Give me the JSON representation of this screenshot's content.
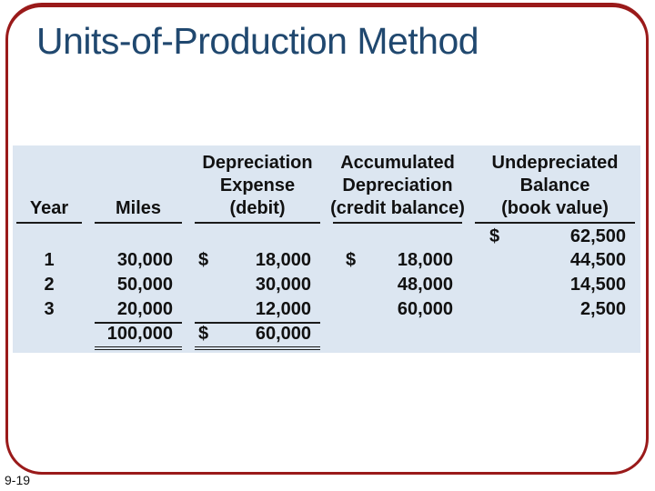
{
  "slide": {
    "title": "Units-of-Production Method",
    "page_number": "9-19"
  },
  "colors": {
    "border_red": "#9A1A1A",
    "title_blue": "#20486F",
    "table_background": "#DCE6F1",
    "text": "#111111"
  },
  "table": {
    "currency_symbol": "$",
    "headers": {
      "year": "Year",
      "miles": "Miles",
      "depreciation_expense": [
        "Depreciation",
        "Expense",
        "(debit)"
      ],
      "accumulated_depreciation": [
        "Accumulated",
        "Depreciation",
        "(credit balance)"
      ],
      "undepreciated_balance": [
        "Undepreciated",
        "Balance",
        "(book value)"
      ]
    },
    "beginning_balance": "62,500",
    "rows": [
      {
        "year": "1",
        "miles": "30,000",
        "depreciation_expense": "18,000",
        "accumulated_depreciation": "18,000",
        "undepreciated_balance": "44,500"
      },
      {
        "year": "2",
        "miles": "50,000",
        "depreciation_expense": "30,000",
        "accumulated_depreciation": "48,000",
        "undepreciated_balance": "14,500"
      },
      {
        "year": "3",
        "miles": "20,000",
        "depreciation_expense": "12,000",
        "accumulated_depreciation": "60,000",
        "undepreciated_balance": "2,500"
      }
    ],
    "totals": {
      "miles": "100,000",
      "depreciation_expense": "60,000"
    }
  }
}
